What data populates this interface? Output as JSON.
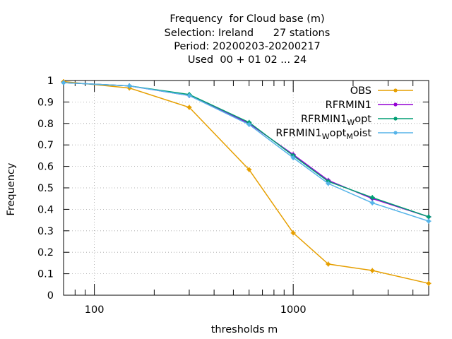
{
  "chart_data": {
    "type": "line",
    "title_lines": [
      "Frequency  for Cloud base (m)",
      "Selection: Ireland      27 stations",
      "Period: 20200203-20200217",
      "Used  00 + 01 02 ... 24"
    ],
    "xlabel": "thresholds m",
    "ylabel": "Frequency",
    "x_scale": "log",
    "xlim": [
      70,
      4800
    ],
    "ylim": [
      0,
      1
    ],
    "x_tick_labels": [
      "100",
      "1000"
    ],
    "y_tick_labels": [
      "0",
      "0.1",
      "0.2",
      "0.3",
      "0.4",
      "0.5",
      "0.6",
      "0.7",
      "0.8",
      "0.9",
      "1"
    ],
    "grid": true,
    "legend_position": "top-right",
    "x": [
      70,
      150,
      300,
      600,
      1000,
      1500,
      2500,
      4800
    ],
    "series": [
      {
        "name": "OBS",
        "color": "#e69f00",
        "values": [
          0.995,
          0.965,
          0.875,
          0.585,
          0.29,
          0.145,
          0.115,
          0.055
        ]
      },
      {
        "name": "RFRMIN1",
        "color": "#9400d3",
        "values": [
          0.99,
          0.975,
          0.93,
          0.8,
          0.655,
          0.535,
          0.45,
          0.365
        ]
      },
      {
        "name": "RFRMIN1_Wopt",
        "color": "#009e73",
        "values": [
          0.99,
          0.975,
          0.935,
          0.805,
          0.65,
          0.53,
          0.455,
          0.365
        ]
      },
      {
        "name": "RFRMIN1_Wopt_Moist",
        "color": "#56b4e9",
        "values": [
          0.99,
          0.975,
          0.93,
          0.795,
          0.64,
          0.52,
          0.43,
          0.345
        ]
      }
    ]
  }
}
